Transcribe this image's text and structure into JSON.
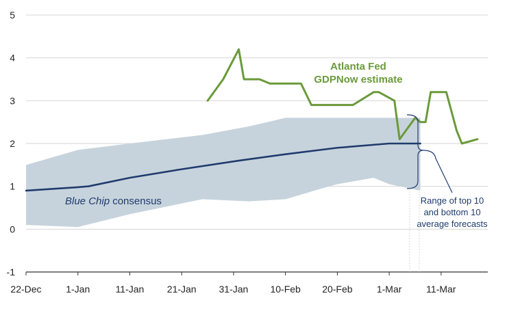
{
  "chart_data": {
    "type": "line",
    "x_ticks": [
      "22-Dec",
      "1-Jan",
      "11-Jan",
      "21-Jan",
      "31-Jan",
      "10-Feb",
      "20-Feb",
      "1-Mar",
      "11-Mar"
    ],
    "y_ticks": [
      "5",
      "4",
      "3",
      "2",
      "1",
      "0",
      "-1"
    ],
    "ylim": [
      -1,
      5
    ],
    "xlim": [
      "22-Dec",
      "20-Mar"
    ],
    "grid": "horizontal",
    "series": [
      {
        "name": "Atlanta Fed GDPNow estimate",
        "color": "#6a9a3a",
        "points": [
          [
            "26-Jan",
            3.0
          ],
          [
            "29-Jan",
            3.5
          ],
          [
            "1-Feb",
            4.2
          ],
          [
            "2-Feb",
            3.5
          ],
          [
            "5-Feb",
            3.5
          ],
          [
            "7-Feb",
            3.4
          ],
          [
            "13-Feb",
            3.4
          ],
          [
            "15-Feb",
            2.9
          ],
          [
            "23-Feb",
            2.9
          ],
          [
            "27-Feb",
            3.2
          ],
          [
            "28-Feb",
            3.2
          ],
          [
            "2-Mar",
            3.0
          ],
          [
            "3-Mar",
            2.1
          ],
          [
            "6-Mar",
            2.6
          ],
          [
            "7-Mar",
            2.5
          ],
          [
            "8-Mar",
            2.5
          ],
          [
            "9-Mar",
            3.2
          ],
          [
            "12-Mar",
            3.2
          ],
          [
            "14-Mar",
            2.3
          ],
          [
            "15-Mar",
            2.0
          ],
          [
            "18-Mar",
            2.1
          ]
        ]
      },
      {
        "name": "Blue Chip consensus",
        "color": "#1f3b6e",
        "points": [
          [
            "22-Dec",
            0.9
          ],
          [
            "1-Jan",
            0.98
          ],
          [
            "3-Jan",
            1.0
          ],
          [
            "11-Jan",
            1.2
          ],
          [
            "21-Jan",
            1.4
          ],
          [
            "1-Feb",
            1.6
          ],
          [
            "10-Feb",
            1.75
          ],
          [
            "20-Feb",
            1.9
          ],
          [
            "1-Mar",
            2.0
          ],
          [
            "7-Mar",
            2.0
          ]
        ]
      }
    ],
    "range_band": {
      "color": "#c7d3dc",
      "dates": [
        "22-Dec",
        "1-Jan",
        "11-Jan",
        "25-Jan",
        "3-Feb",
        "10-Feb",
        "17-Feb",
        "20-Feb",
        "27-Feb",
        "1-Mar",
        "7-Mar"
      ],
      "upper": [
        1.5,
        1.85,
        2.0,
        2.2,
        2.4,
        2.6,
        2.6,
        2.6,
        2.6,
        2.6,
        2.6
      ],
      "lower": [
        0.1,
        0.05,
        0.35,
        0.7,
        0.65,
        0.7,
        0.95,
        1.05,
        1.2,
        1.05,
        0.9
      ]
    },
    "annotations": {
      "gdpnow_label": [
        "Atlanta Fed",
        "GDPNow estimate"
      ],
      "bluechip_label_italic": "Blue Chip",
      "bluechip_label_rest": " consensus",
      "range_label": [
        "Range of top 10",
        "and bottom 10",
        "average forecasts"
      ]
    }
  }
}
